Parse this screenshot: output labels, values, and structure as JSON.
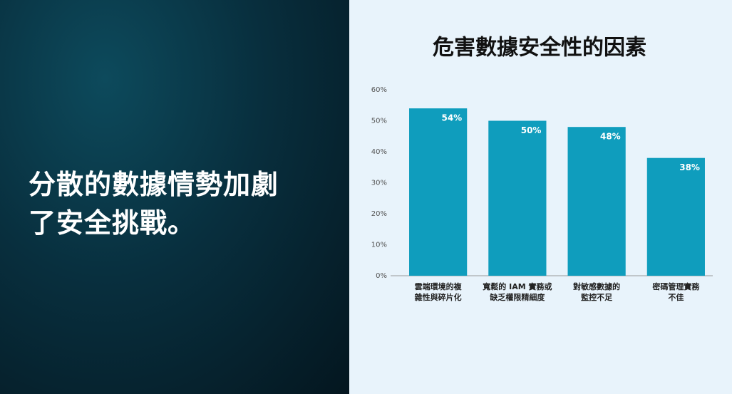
{
  "headline": {
    "lines": [
      "分散的數據情勢加劇",
      "了安全挑戰。"
    ]
  },
  "chart_data": {
    "type": "bar",
    "title": "危害數據安全性的因素",
    "categories": [
      [
        "雲端環境的複",
        "雜性與碎片化"
      ],
      [
        "寬鬆的 IAM 實務或",
        "缺乏權限精細度"
      ],
      [
        "對敏感數據的",
        "監控不足"
      ],
      [
        "密碼管理實務",
        "不佳"
      ]
    ],
    "values": [
      54,
      50,
      48,
      38
    ],
    "value_labels": [
      "54%",
      "50%",
      "48%",
      "38%"
    ],
    "color": "#0f9dbd",
    "ylim": [
      0,
      60
    ],
    "yticks": [
      {
        "value": 0,
        "label": "0%"
      },
      {
        "value": 10,
        "label": "10%"
      },
      {
        "value": 20,
        "label": "20%"
      },
      {
        "value": 30,
        "label": "30%"
      },
      {
        "value": 40,
        "label": "40%"
      },
      {
        "value": 50,
        "label": "50%"
      },
      {
        "value": 60,
        "label": "60%"
      }
    ],
    "grid": false
  }
}
